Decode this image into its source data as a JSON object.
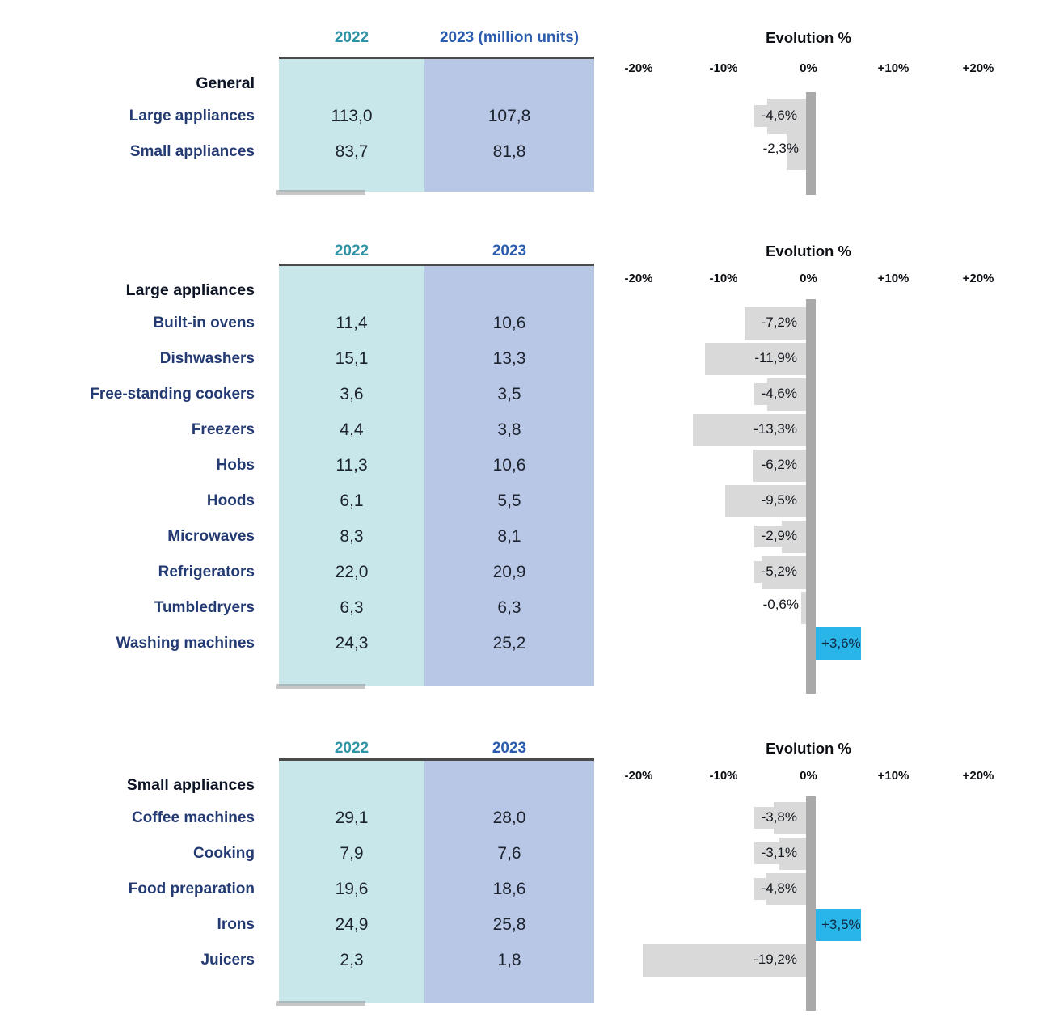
{
  "colors": {
    "header_2022_text": "#2E93A4",
    "header_2023_text": "#2B5CAD",
    "col_2022_bg": "#C8E7EB",
    "col_2023_bg": "#B9C7E6",
    "row_label_text": "#233A72",
    "group_label_text": "#0E1526",
    "value_text": "#1C222E",
    "bar_negative": "#D9D9D9",
    "bar_positive": "#29B5E8",
    "axis_line": "#A9A9A9",
    "chart_text": "#0B0E12"
  },
  "sections": [
    {
      "col_header_2022": "2022",
      "col_header_2023": "2023 (million units)",
      "evolution_title": "Evolution %",
      "axis_ticks": [
        "-20%",
        "-10%",
        "0%",
        "+10%",
        "+20%"
      ],
      "group_label": "General",
      "rows": [
        {
          "label": "Large appliances",
          "v2022": "113,0",
          "v2023": "107,8",
          "evolution_pct": -4.6,
          "evolution_label": "-4,6%"
        },
        {
          "label": "Small appliances",
          "v2022": "83,7",
          "v2023": "81,8",
          "evolution_pct": -2.3,
          "evolution_label": "-2,3%"
        }
      ]
    },
    {
      "col_header_2022": "2022",
      "col_header_2023": "2023",
      "evolution_title": "Evolution %",
      "axis_ticks": [
        "-20%",
        "-10%",
        "0%",
        "+10%",
        "+20%"
      ],
      "group_label": "Large appliances",
      "rows": [
        {
          "label": "Built-in ovens",
          "v2022": "11,4",
          "v2023": "10,6",
          "evolution_pct": -7.2,
          "evolution_label": "-7,2%"
        },
        {
          "label": "Dishwashers",
          "v2022": "15,1",
          "v2023": "13,3",
          "evolution_pct": -11.9,
          "evolution_label": "-11,9%"
        },
        {
          "label": "Free-standing cookers",
          "v2022": "3,6",
          "v2023": "3,5",
          "evolution_pct": -4.6,
          "evolution_label": "-4,6%"
        },
        {
          "label": "Freezers",
          "v2022": "4,4",
          "v2023": "3,8",
          "evolution_pct": -13.3,
          "evolution_label": "-13,3%"
        },
        {
          "label": "Hobs",
          "v2022": "11,3",
          "v2023": "10,6",
          "evolution_pct": -6.2,
          "evolution_label": "-6,2%"
        },
        {
          "label": "Hoods",
          "v2022": "6,1",
          "v2023": "5,5",
          "evolution_pct": -9.5,
          "evolution_label": "-9,5%"
        },
        {
          "label": "Microwaves",
          "v2022": "8,3",
          "v2023": "8,1",
          "evolution_pct": -2.9,
          "evolution_label": "-2,9%"
        },
        {
          "label": "Refrigerators",
          "v2022": "22,0",
          "v2023": "20,9",
          "evolution_pct": -5.2,
          "evolution_label": "-5,2%"
        },
        {
          "label": "Tumbledryers",
          "v2022": "6,3",
          "v2023": "6,3",
          "evolution_pct": -0.6,
          "evolution_label": "-0,6%"
        },
        {
          "label": "Washing machines",
          "v2022": "24,3",
          "v2023": "25,2",
          "evolution_pct": 3.6,
          "evolution_label": "+3,6%"
        }
      ]
    },
    {
      "col_header_2022": "2022",
      "col_header_2023": "2023",
      "evolution_title": "Evolution %",
      "axis_ticks": [
        "-20%",
        "-10%",
        "0%",
        "+10%",
        "+20%"
      ],
      "group_label": "Small appliances",
      "rows": [
        {
          "label": "Coffee machines",
          "v2022": "29,1",
          "v2023": "28,0",
          "evolution_pct": -3.8,
          "evolution_label": "-3,8%"
        },
        {
          "label": "Cooking",
          "v2022": "7,9",
          "v2023": "7,6",
          "evolution_pct": -3.1,
          "evolution_label": "-3,1%"
        },
        {
          "label": "Food preparation",
          "v2022": "19,6",
          "v2023": "18,6",
          "evolution_pct": -4.8,
          "evolution_label": "-4,8%"
        },
        {
          "label": "Irons",
          "v2022": "24,9",
          "v2023": "25,8",
          "evolution_pct": 3.5,
          "evolution_label": "+3,5%"
        },
        {
          "label": "Juicers",
          "v2022": "2,3",
          "v2023": "1,8",
          "evolution_pct": -19.2,
          "evolution_label": "-19,2%"
        }
      ]
    }
  ],
  "chart_data": [
    {
      "type": "bar",
      "orientation": "horizontal",
      "title": "Evolution %",
      "group": "General",
      "categories": [
        "Large appliances",
        "Small appliances"
      ],
      "series": [
        {
          "name": "2022 (million units)",
          "values": [
            113.0,
            83.7
          ]
        },
        {
          "name": "2023 (million units)",
          "values": [
            107.8,
            81.8
          ]
        },
        {
          "name": "Evolution %",
          "values": [
            -4.6,
            -2.3
          ]
        }
      ],
      "xlim": [
        -20,
        20
      ],
      "x_ticks": [
        "-20%",
        "-10%",
        "0%",
        "+10%",
        "+20%"
      ],
      "grid": false,
      "legend_position": "none"
    },
    {
      "type": "bar",
      "orientation": "horizontal",
      "title": "Evolution %",
      "group": "Large appliances",
      "categories": [
        "Built-in ovens",
        "Dishwashers",
        "Free-standing cookers",
        "Freezers",
        "Hobs",
        "Hoods",
        "Microwaves",
        "Refrigerators",
        "Tumbledryers",
        "Washing machines"
      ],
      "series": [
        {
          "name": "2022 (million units)",
          "values": [
            11.4,
            15.1,
            3.6,
            4.4,
            11.3,
            6.1,
            8.3,
            22.0,
            6.3,
            24.3
          ]
        },
        {
          "name": "2023 (million units)",
          "values": [
            10.6,
            13.3,
            3.5,
            3.8,
            10.6,
            5.5,
            8.1,
            20.9,
            6.3,
            25.2
          ]
        },
        {
          "name": "Evolution %",
          "values": [
            -7.2,
            -11.9,
            -4.6,
            -13.3,
            -6.2,
            -9.5,
            -2.9,
            -5.2,
            -0.6,
            3.6
          ]
        }
      ],
      "xlim": [
        -20,
        20
      ],
      "x_ticks": [
        "-20%",
        "-10%",
        "0%",
        "+10%",
        "+20%"
      ],
      "grid": false,
      "legend_position": "none"
    },
    {
      "type": "bar",
      "orientation": "horizontal",
      "title": "Evolution %",
      "group": "Small appliances",
      "categories": [
        "Coffee machines",
        "Cooking",
        "Food preparation",
        "Irons",
        "Juicers"
      ],
      "series": [
        {
          "name": "2022 (million units)",
          "values": [
            29.1,
            7.9,
            19.6,
            24.9,
            2.3
          ]
        },
        {
          "name": "2023 (million units)",
          "values": [
            28.0,
            7.6,
            18.6,
            25.8,
            1.8
          ]
        },
        {
          "name": "Evolution %",
          "values": [
            -3.8,
            -3.1,
            -4.8,
            3.5,
            -19.2
          ]
        }
      ],
      "xlim": [
        -20,
        20
      ],
      "x_ticks": [
        "-20%",
        "-10%",
        "0%",
        "+10%",
        "+20%"
      ],
      "grid": false,
      "legend_position": "none"
    }
  ]
}
